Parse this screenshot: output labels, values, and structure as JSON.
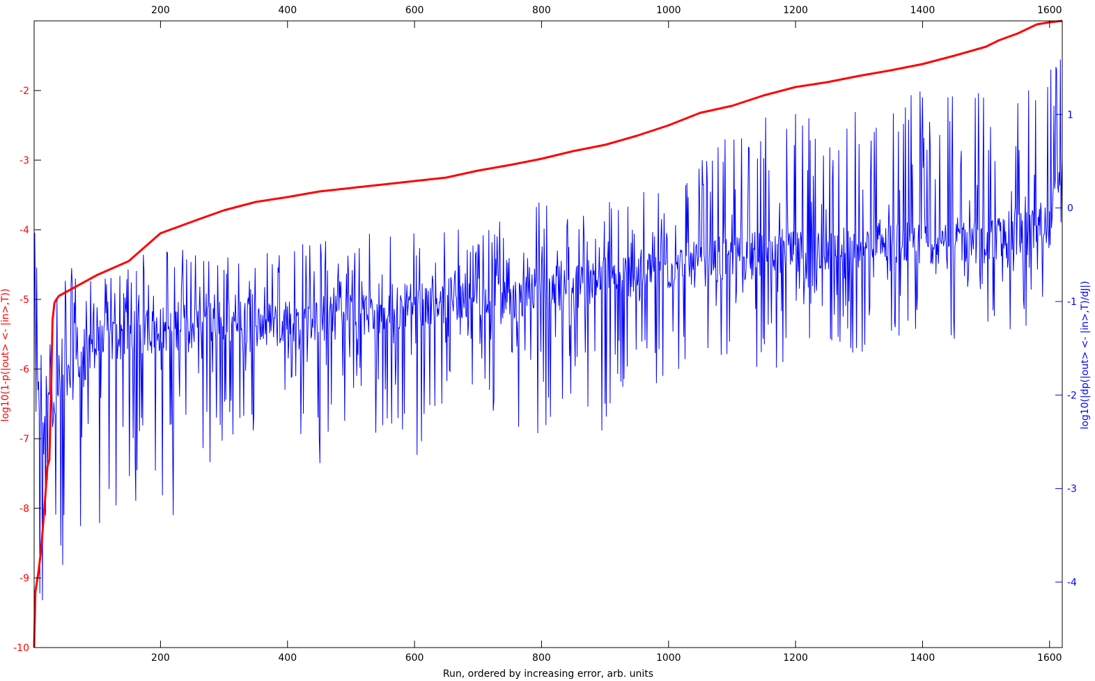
{
  "chart_data": {
    "type": "line",
    "xlabel": "Run, ordered by increasing error, arb. units",
    "xlim": [
      1,
      1620
    ],
    "x_ticks": [
      200,
      400,
      600,
      800,
      1000,
      1200,
      1400,
      1600
    ],
    "grid": false,
    "axes": {
      "left": {
        "label": "log10(1-p(|out> <- |in>,T))",
        "color": "#ff0000",
        "ylim": [
          -10,
          -1
        ],
        "ticks": [
          -10,
          -9,
          -8,
          -7,
          -6,
          -5,
          -4,
          -3,
          -2
        ]
      },
      "right": {
        "label": "log10(|dp(|out> <- |in>,T)/dJ|)",
        "color": "#0000ff",
        "ylim": [
          -4.7,
          2
        ],
        "ticks": [
          -4,
          -3,
          -2,
          -1,
          0,
          1
        ]
      }
    },
    "series": [
      {
        "axis": "left",
        "color": "#ff0000",
        "x": [
          1,
          3,
          8,
          12,
          18,
          22,
          25,
          28,
          30,
          33,
          36,
          40,
          60,
          100,
          150,
          200,
          230,
          260,
          300,
          350,
          400,
          450,
          500,
          550,
          600,
          650,
          700,
          750,
          800,
          850,
          900,
          950,
          1000,
          1050,
          1100,
          1150,
          1200,
          1250,
          1300,
          1350,
          1400,
          1450,
          1500,
          1520,
          1550,
          1580,
          1600,
          1620
        ],
        "values": [
          -10,
          -9.2,
          -8.9,
          -8.6,
          -7.9,
          -7.4,
          -7.3,
          -6.2,
          -5.3,
          -5.05,
          -5.0,
          -4.95,
          -4.85,
          -4.65,
          -4.45,
          -4.05,
          -3.95,
          -3.85,
          -3.72,
          -3.6,
          -3.53,
          -3.45,
          -3.4,
          -3.35,
          -3.3,
          -3.25,
          -3.15,
          -3.07,
          -2.98,
          -2.87,
          -2.78,
          -2.65,
          -2.5,
          -2.32,
          -2.22,
          -2.07,
          -1.95,
          -1.88,
          -1.79,
          -1.71,
          -1.62,
          -1.5,
          -1.37,
          -1.28,
          -1.18,
          -1.05,
          -1.02,
          -1.0
        ]
      },
      {
        "axis": "right",
        "color": "#0000ff",
        "sampled": true,
        "x": [
          1,
          50,
          100,
          150,
          200,
          250,
          300,
          350,
          400,
          450,
          500,
          550,
          600,
          650,
          700,
          750,
          800,
          850,
          900,
          950,
          1000,
          1050,
          1100,
          1150,
          1200,
          1250,
          1300,
          1350,
          1400,
          1450,
          1500,
          1550,
          1600,
          1620
        ],
        "values": [
          -2.4,
          -1.9,
          -1.5,
          -1.35,
          -1.3,
          -1.25,
          -1.25,
          -1.25,
          -1.2,
          -1.2,
          -1.15,
          -1.15,
          -1.0,
          -1.0,
          -1.0,
          -1.0,
          -0.85,
          -0.85,
          -0.75,
          -0.7,
          -0.65,
          -0.6,
          -0.55,
          -0.5,
          -0.5,
          -0.45,
          -0.45,
          -0.4,
          -0.4,
          -0.35,
          -0.35,
          -0.3,
          -0.2,
          0.5
        ],
        "upper_envelope": [
          -0.25,
          -0.6,
          -0.8,
          -0.6,
          -0.35,
          -0.4,
          -0.5,
          -0.45,
          -0.4,
          -0.3,
          -0.3,
          -0.2,
          -0.25,
          -0.2,
          -0.2,
          0.2,
          0.1,
          -0.1,
          0.1,
          0.2,
          0.3,
          0.5,
          0.8,
          1.2,
          1.2,
          1.3,
          1.2,
          1.2,
          1.3,
          1.2,
          1.3,
          1.5,
          1.5,
          1.9
        ],
        "lower_envelope": [
          -4.4,
          -4.7,
          -3.5,
          -3.6,
          -3.6,
          -3.0,
          -2.5,
          -2.6,
          -2.7,
          -2.8,
          -2.4,
          -2.5,
          -2.8,
          -2.0,
          -2.0,
          -2.6,
          -2.4,
          -2.2,
          -2.5,
          -1.8,
          -2.0,
          -1.8,
          -1.6,
          -1.8,
          -1.6,
          -1.5,
          -1.6,
          -1.4,
          -1.5,
          -1.5,
          -1.3,
          -1.3,
          -1.6,
          -1.0
        ]
      }
    ]
  }
}
